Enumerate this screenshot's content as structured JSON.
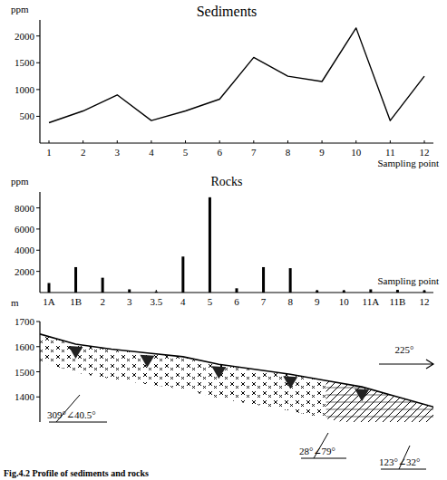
{
  "chart_data": [
    {
      "type": "line",
      "title": "Sediments",
      "y_label": "ppm",
      "x_label": "Sampling point",
      "categories": [
        "1",
        "2",
        "3",
        "4",
        "5",
        "6",
        "7",
        "8",
        "9",
        "10",
        "11",
        "12"
      ],
      "values": [
        380,
        600,
        900,
        420,
        600,
        820,
        1600,
        1250,
        1150,
        2150,
        420,
        1250
      ],
      "color": "#000000",
      "ylim": [
        0,
        2300
      ],
      "yticks": [
        500,
        1000,
        1500,
        2000
      ]
    },
    {
      "type": "bar",
      "title": "Rocks",
      "y_label": "ppm",
      "x_label": "Sampling point",
      "categories": [
        "1A",
        "1B",
        "2",
        "3",
        "3.5",
        "4",
        "5",
        "6",
        "7",
        "8",
        "9",
        "10",
        "11A",
        "11B",
        "12"
      ],
      "values": [
        900,
        2400,
        1400,
        300,
        100,
        3400,
        9000,
        400,
        2400,
        2300,
        200,
        200,
        300,
        250,
        200
      ],
      "color": "#000000",
      "ylim": [
        0,
        9500
      ],
      "yticks": [
        2000,
        4000,
        6000,
        8000
      ]
    },
    {
      "type": "profile",
      "y_label": "m",
      "categories": [
        null,
        null,
        null,
        null,
        null,
        null,
        null,
        null,
        null,
        null,
        null,
        null
      ],
      "values": [
        1650,
        1610,
        1590,
        1575,
        1560,
        1530,
        1510,
        1490,
        1465,
        1440,
        1400,
        1360
      ],
      "color": "#000000",
      "ylim": [
        1300,
        1700
      ],
      "yticks": [
        1400,
        1500,
        1600,
        1700
      ],
      "tick_labels": "y",
      "annotations": [
        "309°∠40.5°",
        "28°∠79°",
        "123°∠32°",
        "225°"
      ]
    }
  ],
  "caption": "Fig.4.2 Profile of sediments and rocks"
}
